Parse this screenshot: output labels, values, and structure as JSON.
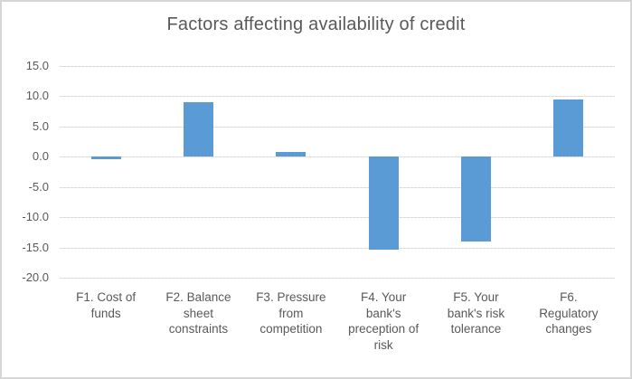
{
  "window": {
    "background": "#ffffff",
    "border_color": "#d6d6d6"
  },
  "chart_data": {
    "type": "bar",
    "title": "Factors affecting availability of credit",
    "categories": [
      "F1. Cost of funds",
      "F2. Balance sheet constraints",
      "F3. Pressure from competition",
      "F4. Your bank's preception of risk",
      "F5. Your bank's risk tolerance",
      "F6. Regulatory changes"
    ],
    "x_labels_wrapped": [
      [
        "F1. Cost of",
        "funds"
      ],
      [
        "F2. Balance",
        "sheet",
        "constraints"
      ],
      [
        "F3. Pressure",
        "from",
        "competition"
      ],
      [
        "F4. Your",
        "bank's",
        "preception of",
        "risk"
      ],
      [
        "F5. Your",
        "bank's risk",
        "tolerance"
      ],
      [
        "F6.",
        "Regulatory",
        "changes"
      ]
    ],
    "values": [
      -0.5,
      9.0,
      0.7,
      -15.3,
      -14.0,
      9.4
    ],
    "ylim": [
      -20.0,
      15.0
    ],
    "ytick_step": 5.0,
    "ytick_labels": [
      "15.0",
      "10.0",
      "5.0",
      "0.0",
      "-5.0",
      "-10.0",
      "-15.0",
      "-20.0"
    ],
    "grid": true,
    "legend": false,
    "colors": {
      "bar": "#5B9BD5",
      "title_text": "#595959",
      "axis_text": "#595959",
      "gridline": "#D9D9D9"
    }
  }
}
